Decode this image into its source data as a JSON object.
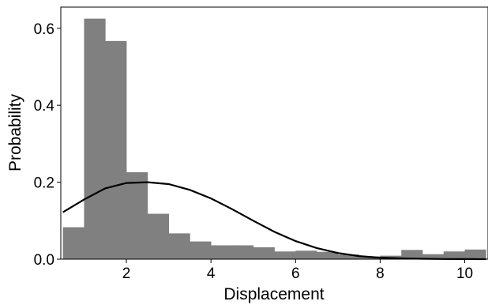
{
  "chart_data": {
    "type": "bar",
    "title": "",
    "xlabel": "Displacement",
    "ylabel": "Probability",
    "xlim": [
      0.45,
      10.55
    ],
    "ylim": [
      0,
      0.655
    ],
    "xticks": [
      2,
      4,
      6,
      8,
      10
    ],
    "xtick_labels": [
      "2",
      "4",
      "6",
      "8",
      "10"
    ],
    "yticks": [
      0.0,
      0.2,
      0.4,
      0.6
    ],
    "ytick_labels": [
      "0.0",
      "0.2",
      "0.4",
      "0.6"
    ],
    "grid": false,
    "histogram": {
      "name": "",
      "color": "#808080",
      "bin_edges": [
        0.5,
        1.0,
        1.5,
        2.0,
        2.5,
        3.0,
        3.5,
        4.0,
        4.5,
        5.0,
        5.5,
        6.0,
        6.5,
        7.0,
        7.5,
        8.0,
        8.5,
        9.0,
        9.5,
        10.0,
        10.5
      ],
      "values": [
        0.083,
        0.625,
        0.567,
        0.226,
        0.118,
        0.067,
        0.046,
        0.036,
        0.036,
        0.031,
        0.02,
        0.022,
        0.019,
        0.012,
        0.007,
        0.009,
        0.024,
        0.013,
        0.02,
        0.025
      ]
    },
    "fit_curve": {
      "name": "",
      "color": "#000000",
      "x": [
        0.5,
        1.0,
        1.5,
        2.0,
        2.5,
        3.0,
        3.5,
        4.0,
        4.5,
        5.0,
        5.5,
        6.0,
        6.5,
        7.0,
        7.5,
        8.0,
        8.5,
        9.0,
        9.5,
        10.0,
        10.5
      ],
      "y": [
        0.122,
        0.155,
        0.184,
        0.198,
        0.2,
        0.195,
        0.18,
        0.158,
        0.13,
        0.1,
        0.071,
        0.047,
        0.029,
        0.016,
        0.008,
        0.004,
        0.002,
        0.001,
        0.0005,
        0.0002,
        0.0001
      ]
    }
  }
}
